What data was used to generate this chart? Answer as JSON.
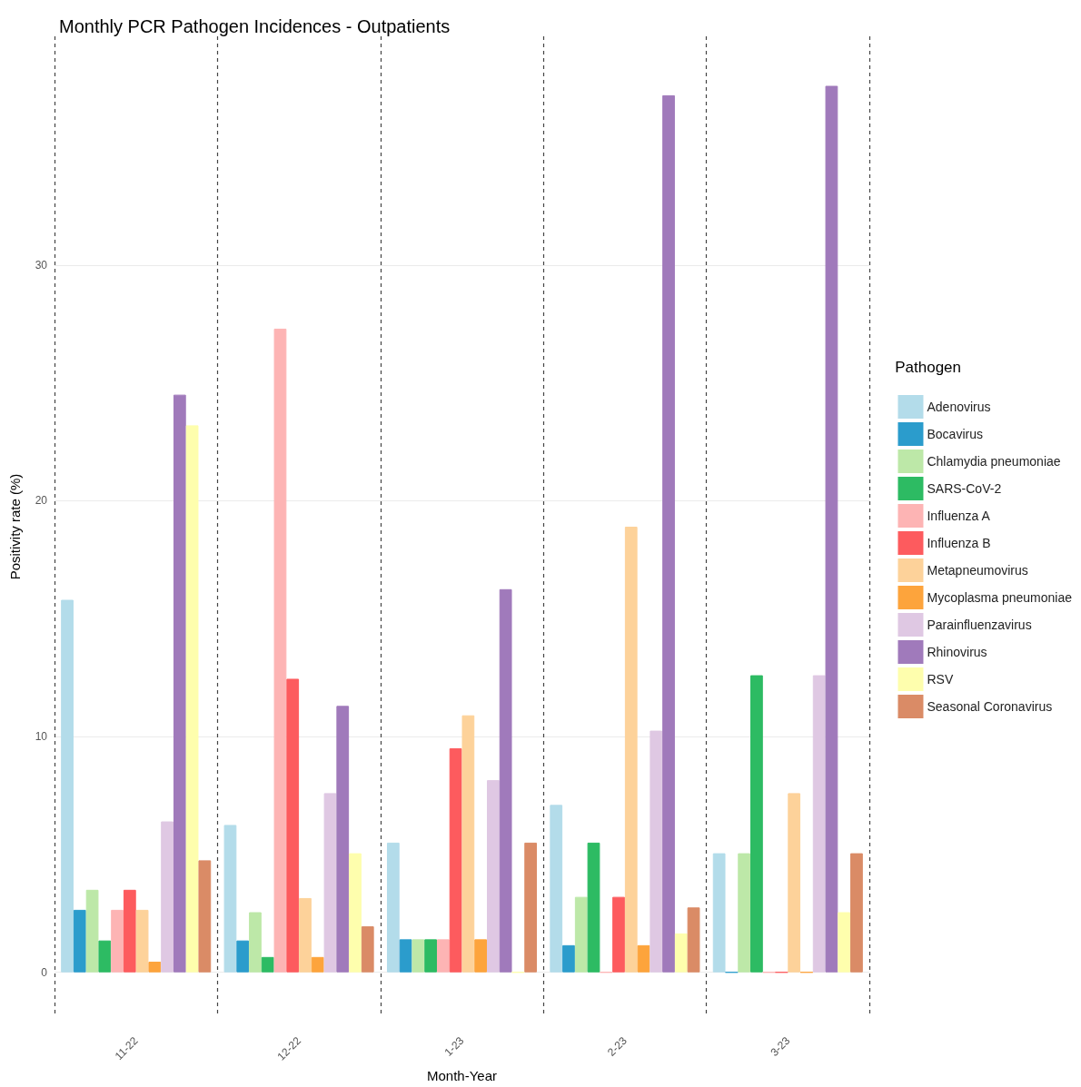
{
  "chart_data": {
    "type": "bar",
    "title": "Monthly PCR Pathogen Incidences - Outpatients",
    "xlabel": "Month-Year",
    "ylabel": "Positivity rate (%)",
    "legend_title": "Pathogen",
    "categories": [
      "11-22",
      "12-22",
      "1-23",
      "2-23",
      "3-23"
    ],
    "series": [
      {
        "name": "Adenovirus",
        "color": "#b3dcea",
        "values": [
          15.8,
          6.25,
          5.5,
          7.1,
          5.05
        ]
      },
      {
        "name": "Bocavirus",
        "color": "#2b9ccc",
        "values": [
          2.65,
          1.35,
          1.4,
          1.15,
          0
        ]
      },
      {
        "name": "Chlamydia pneumoniae",
        "color": "#bde8a8",
        "values": [
          3.5,
          2.55,
          1.4,
          3.2,
          5.05
        ]
      },
      {
        "name": "SARS-CoV-2",
        "color": "#2dbb63",
        "values": [
          1.35,
          0.65,
          1.4,
          5.5,
          12.6
        ]
      },
      {
        "name": "Influenza A",
        "color": "#fdb4b4",
        "values": [
          2.65,
          27.3,
          1.4,
          0,
          0
        ]
      },
      {
        "name": "Influenza B",
        "color": "#fd5b5e",
        "values": [
          3.5,
          12.45,
          9.5,
          3.2,
          0
        ]
      },
      {
        "name": "Metapneumovirus",
        "color": "#fdd29a",
        "values": [
          2.65,
          3.15,
          10.9,
          18.9,
          7.6
        ]
      },
      {
        "name": "Mycoplasma pneumoniae",
        "color": "#fda43c",
        "values": [
          0.45,
          0.65,
          1.4,
          1.15,
          0
        ]
      },
      {
        "name": "Parainfluenzavirus",
        "color": "#dfc8e3",
        "values": [
          6.4,
          7.6,
          8.15,
          10.25,
          12.6
        ]
      },
      {
        "name": "Rhinovirus",
        "color": "#a07abb",
        "values": [
          24.5,
          11.3,
          16.25,
          37.2,
          37.6
        ]
      },
      {
        "name": "RSV",
        "color": "#fefead",
        "values": [
          23.2,
          5.05,
          0,
          1.65,
          2.55
        ]
      },
      {
        "name": "Seasonal Coronavirus",
        "color": "#da8b66",
        "values": [
          4.75,
          1.95,
          5.5,
          2.75,
          5.05
        ]
      }
    ],
    "ylim": [
      -1.9,
      39.7
    ],
    "yticks": [
      0,
      10,
      20,
      30
    ],
    "grid": true,
    "legend": "right"
  }
}
